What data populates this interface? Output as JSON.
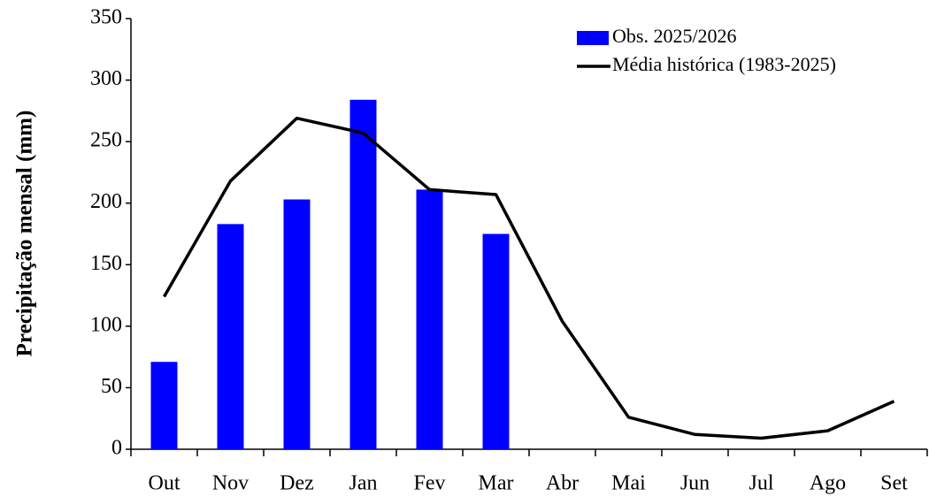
{
  "chart_data": {
    "type": "bar",
    "y_label": "Precipitação mensal (mm)",
    "categories": [
      "Out",
      "Nov",
      "Dez",
      "Jan",
      "Fev",
      "Mar",
      "Abr",
      "Mai",
      "Jun",
      "Jul",
      "Ago",
      "Set"
    ],
    "series": [
      {
        "name": "Obs. 2025/2026",
        "type": "bar",
        "color": "#0000ff",
        "values": [
          71,
          183,
          203,
          284,
          211,
          175,
          null,
          null,
          null,
          null,
          null,
          null
        ]
      },
      {
        "name": "Média histórica (1983-2025)",
        "type": "line",
        "color": "#000000",
        "values": [
          124,
          218,
          269,
          257,
          211,
          207,
          104,
          26,
          12,
          9,
          15,
          39
        ]
      }
    ],
    "ylim": [
      0,
      350
    ],
    "yticks": [
      0,
      50,
      100,
      150,
      200,
      250,
      300,
      350
    ],
    "grid": false,
    "legend": "top-right"
  }
}
